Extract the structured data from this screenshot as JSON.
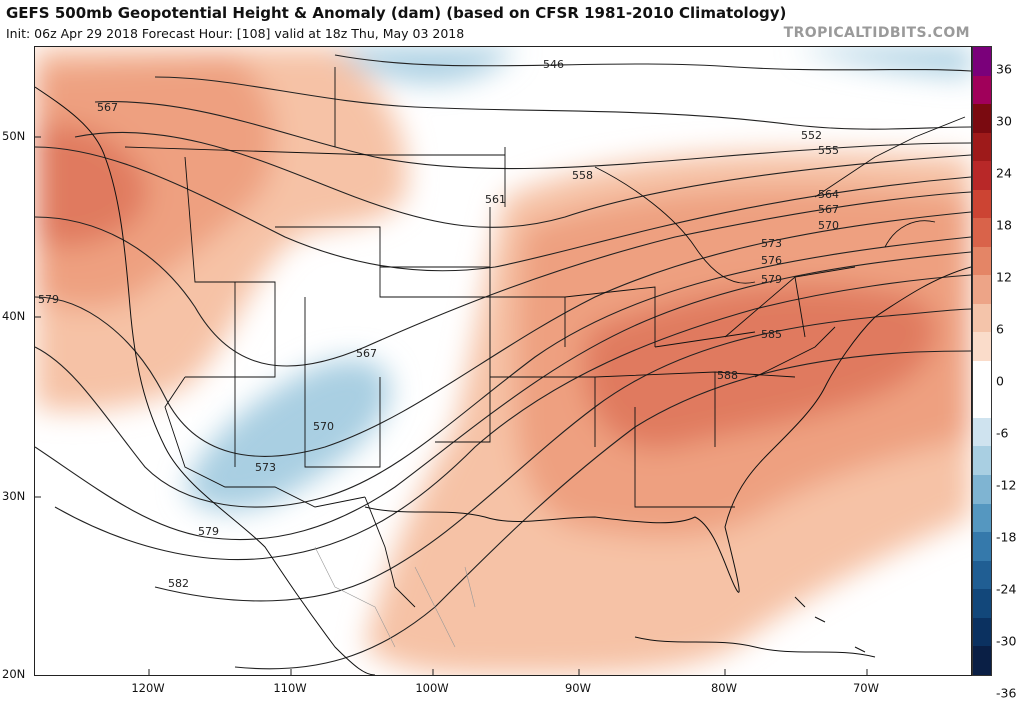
{
  "header": {
    "title": "GEFS 500mb Geopotential Height & Anomaly (dam) (based on CFSR 1981-2010 Climatology)",
    "subtitle": "Init: 06z Apr 29 2018   Forecast Hour: [108]   valid at 18z Thu, May 03 2018",
    "brand": "TROPICALTIDBITS.COM"
  },
  "axes": {
    "lat_labels": [
      "50N",
      "40N",
      "30N",
      "20N"
    ],
    "lon_labels": [
      "120W",
      "110W",
      "100W",
      "90W",
      "80W",
      "70W"
    ]
  },
  "contour_labels": [
    "546",
    "552",
    "555",
    "558",
    "561",
    "564",
    "567",
    "567",
    "567",
    "570",
    "570",
    "573",
    "573",
    "576",
    "579",
    "579",
    "579",
    "582",
    "585",
    "588"
  ],
  "colorbar": {
    "labels": [
      "36",
      "30",
      "24",
      "18",
      "12",
      "6",
      "0",
      "-6",
      "-12",
      "-18",
      "-24",
      "-30",
      "-36"
    ],
    "colors": [
      "#7a007a",
      "#a0005a",
      "#7a0a10",
      "#9e1a1a",
      "#b82828",
      "#cc4433",
      "#d9634a",
      "#e48566",
      "#eda487",
      "#f4c4aa",
      "#fadcca",
      "#ffffff",
      "#ffffff",
      "#cfe3ef",
      "#a9cfe2",
      "#7fb4d2",
      "#5597c0",
      "#3579ab",
      "#205e93",
      "#12477a",
      "#0b3160",
      "#0a1f45"
    ]
  }
}
